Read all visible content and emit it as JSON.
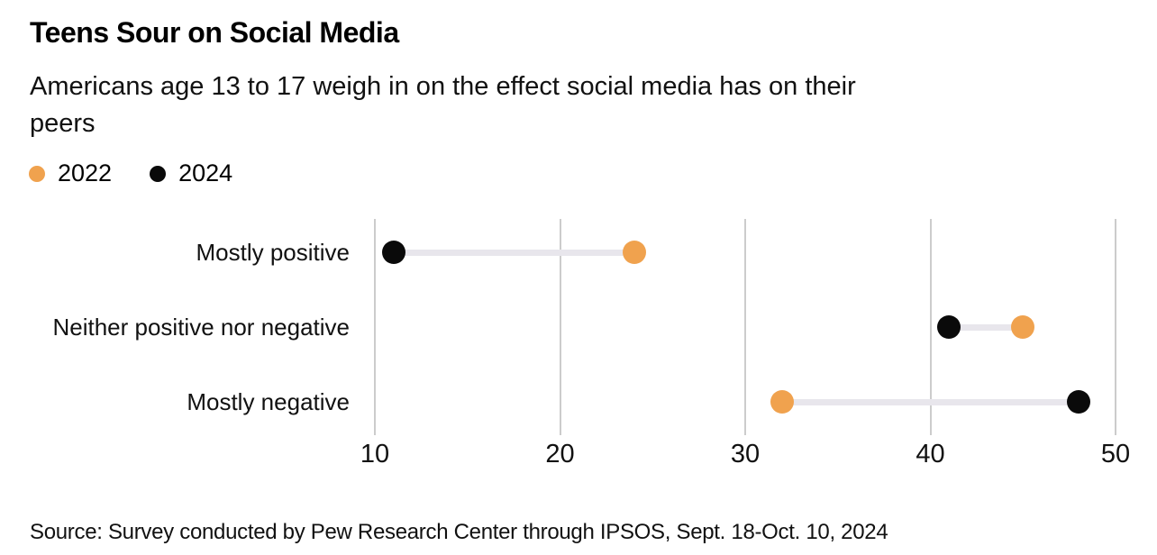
{
  "header": {
    "title": "Teens Sour on Social Media",
    "subtitle_line1": "Americans age 13 to 17 weigh in on the effect social media has on their",
    "subtitle_line2": "peers"
  },
  "chart_data": {
    "type": "scatter",
    "variant": "dumbbell",
    "title": "Teens Sour on Social Media",
    "subtitle": "Americans age 13 to 17 weigh in on the effect social media has on their peers",
    "categories": [
      "Mostly positive",
      "Neither positive nor negative",
      "Mostly negative"
    ],
    "series": [
      {
        "name": "2022",
        "color": "#F0A24E",
        "values": [
          24,
          45,
          32
        ]
      },
      {
        "name": "2024",
        "color": "#0A0A0A",
        "values": [
          11,
          41,
          48
        ]
      }
    ],
    "x_ticks": [
      10,
      20,
      30,
      40,
      50
    ],
    "xlim": [
      10,
      50
    ],
    "grid": "vertical",
    "legend_position": "top-left",
    "connector_color": "#E8E6EC",
    "gridline_color": "#CCCCCC"
  },
  "footer": {
    "source": "Source: Survey conducted by Pew Research Center through IPSOS, Sept. 18-Oct. 10, 2024"
  }
}
